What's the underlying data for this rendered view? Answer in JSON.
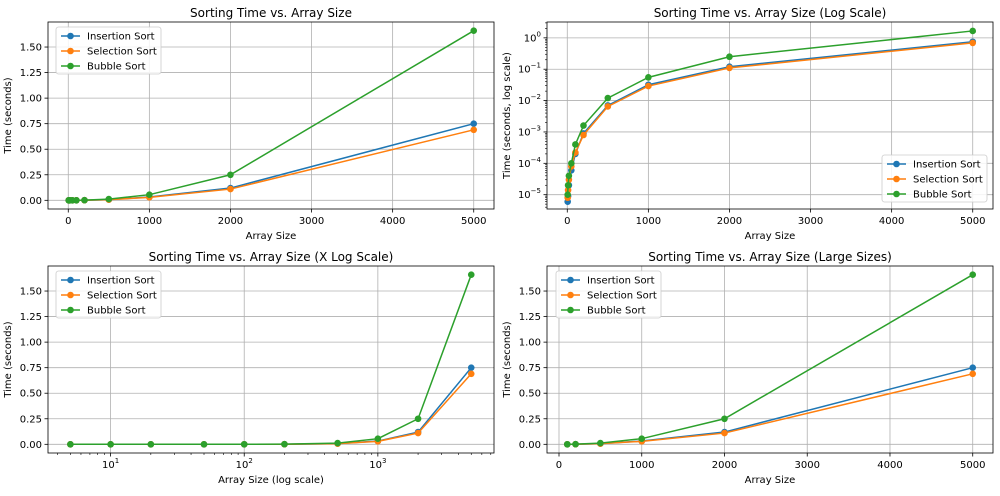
{
  "colors": {
    "insertion": "#1f77b4",
    "selection": "#ff7f0e",
    "bubble": "#2ca02c",
    "grid": "#b0b0b0"
  },
  "chart_data": [
    {
      "type": "line",
      "title": "Sorting Time vs. Array Size",
      "xlabel": "Array Size",
      "ylabel": "Time (seconds)",
      "xscale": "linear",
      "yscale": "linear",
      "xlim": [
        -250,
        5250
      ],
      "ylim": [
        -0.085,
        1.745
      ],
      "xticks": [
        0,
        1000,
        2000,
        3000,
        4000,
        5000
      ],
      "xtick_labels": [
        "0",
        "1000",
        "2000",
        "3000",
        "4000",
        "5000"
      ],
      "yticks": [
        0,
        0.25,
        0.5,
        0.75,
        1.0,
        1.25,
        1.5
      ],
      "ytick_labels": [
        "0.00",
        "0.25",
        "0.50",
        "0.75",
        "1.00",
        "1.25",
        "1.50"
      ],
      "grid": true,
      "legend": "upper left",
      "x": [
        5,
        10,
        20,
        50,
        100,
        200,
        500,
        1000,
        2000,
        5000
      ],
      "series": [
        {
          "name": "Insertion Sort",
          "color": "#1f77b4",
          "values": [
            6e-06,
            9e-06,
            2e-05,
            6e-05,
            0.0002,
            0.0009,
            0.007,
            0.032,
            0.12,
            0.75
          ]
        },
        {
          "name": "Selection Sort",
          "color": "#ff7f0e",
          "values": [
            8e-06,
            1.4e-05,
            3e-05,
            8e-05,
            0.00022,
            0.0008,
            0.0065,
            0.029,
            0.11,
            0.69
          ]
        },
        {
          "name": "Bubble Sort",
          "color": "#2ca02c",
          "values": [
            1e-05,
            2e-05,
            4e-05,
            0.0001,
            0.0004,
            0.0016,
            0.012,
            0.055,
            0.25,
            1.66
          ]
        }
      ]
    },
    {
      "type": "line",
      "title": "Sorting Time vs. Array Size (Log Scale)",
      "xlabel": "Array Size",
      "ylabel": "Time (seconds, log scale)",
      "xscale": "linear",
      "yscale": "log",
      "xlim": [
        -250,
        5250
      ],
      "ylim": [
        3.5e-06,
        3.2
      ],
      "xticks": [
        0,
        1000,
        2000,
        3000,
        4000,
        5000
      ],
      "xtick_labels": [
        "0",
        "1000",
        "2000",
        "3000",
        "4000",
        "5000"
      ],
      "yticks": [
        1e-05,
        0.0001,
        0.001,
        0.01,
        0.1,
        1
      ],
      "ytick_labels": [
        "10",
        "10",
        "10",
        "10",
        "10",
        "10"
      ],
      "ytick_exponents": [
        "−5",
        "−4",
        "−3",
        "−2",
        "−1",
        "0"
      ],
      "grid": true,
      "legend": "lower right",
      "x": [
        5,
        10,
        20,
        50,
        100,
        200,
        500,
        1000,
        2000,
        5000
      ],
      "series": [
        {
          "name": "Insertion Sort",
          "color": "#1f77b4",
          "values": [
            6e-06,
            9e-06,
            2e-05,
            6e-05,
            0.0002,
            0.0009,
            0.007,
            0.032,
            0.12,
            0.75
          ]
        },
        {
          "name": "Selection Sort",
          "color": "#ff7f0e",
          "values": [
            8e-06,
            1.4e-05,
            3e-05,
            8e-05,
            0.00022,
            0.0008,
            0.0065,
            0.029,
            0.11,
            0.69
          ]
        },
        {
          "name": "Bubble Sort",
          "color": "#2ca02c",
          "values": [
            1e-05,
            2e-05,
            4e-05,
            0.0001,
            0.0004,
            0.0016,
            0.012,
            0.055,
            0.25,
            1.66
          ]
        }
      ]
    },
    {
      "type": "line",
      "title": "Sorting Time vs. Array Size (X Log Scale)",
      "xlabel": "Array Size (log scale)",
      "ylabel": "Time (seconds)",
      "xscale": "log",
      "yscale": "linear",
      "xlim": [
        3.4,
        7400
      ],
      "ylim": [
        -0.085,
        1.745
      ],
      "xticks": [
        10,
        100,
        1000
      ],
      "xtick_labels": [
        "10",
        "10",
        "10"
      ],
      "xtick_exponents": [
        "1",
        "2",
        "3"
      ],
      "yticks": [
        0,
        0.25,
        0.5,
        0.75,
        1.0,
        1.25,
        1.5
      ],
      "ytick_labels": [
        "0.00",
        "0.25",
        "0.50",
        "0.75",
        "1.00",
        "1.25",
        "1.50"
      ],
      "grid": true,
      "legend": "upper left",
      "x": [
        5,
        10,
        20,
        50,
        100,
        200,
        500,
        1000,
        2000,
        5000
      ],
      "series": [
        {
          "name": "Insertion Sort",
          "color": "#1f77b4",
          "values": [
            6e-06,
            9e-06,
            2e-05,
            6e-05,
            0.0002,
            0.0009,
            0.007,
            0.032,
            0.12,
            0.75
          ]
        },
        {
          "name": "Selection Sort",
          "color": "#ff7f0e",
          "values": [
            8e-06,
            1.4e-05,
            3e-05,
            8e-05,
            0.00022,
            0.0008,
            0.0065,
            0.029,
            0.11,
            0.69
          ]
        },
        {
          "name": "Bubble Sort",
          "color": "#2ca02c",
          "values": [
            1e-05,
            2e-05,
            4e-05,
            0.0001,
            0.0004,
            0.0016,
            0.012,
            0.055,
            0.25,
            1.66
          ]
        }
      ]
    },
    {
      "type": "line",
      "title": "Sorting Time vs. Array Size (Large Sizes)",
      "xlabel": "Array Size",
      "ylabel": "Time (seconds)",
      "xscale": "linear",
      "yscale": "linear",
      "xlim": [
        -145,
        5245
      ],
      "ylim": [
        -0.085,
        1.745
      ],
      "xticks": [
        0,
        1000,
        2000,
        3000,
        4000,
        5000
      ],
      "xtick_labels": [
        "0",
        "1000",
        "2000",
        "3000",
        "4000",
        "5000"
      ],
      "yticks": [
        0,
        0.25,
        0.5,
        0.75,
        1.0,
        1.25,
        1.5
      ],
      "ytick_labels": [
        "0.00",
        "0.25",
        "0.50",
        "0.75",
        "1.00",
        "1.25",
        "1.50"
      ],
      "grid": true,
      "legend": "upper left",
      "x": [
        100,
        200,
        500,
        1000,
        2000,
        5000
      ],
      "series": [
        {
          "name": "Insertion Sort",
          "color": "#1f77b4",
          "values": [
            0.0002,
            0.0009,
            0.007,
            0.032,
            0.12,
            0.75
          ]
        },
        {
          "name": "Selection Sort",
          "color": "#ff7f0e",
          "values": [
            0.00022,
            0.0008,
            0.0065,
            0.029,
            0.11,
            0.69
          ]
        },
        {
          "name": "Bubble Sort",
          "color": "#2ca02c",
          "values": [
            0.0004,
            0.0016,
            0.012,
            0.055,
            0.25,
            1.66
          ]
        }
      ]
    }
  ]
}
